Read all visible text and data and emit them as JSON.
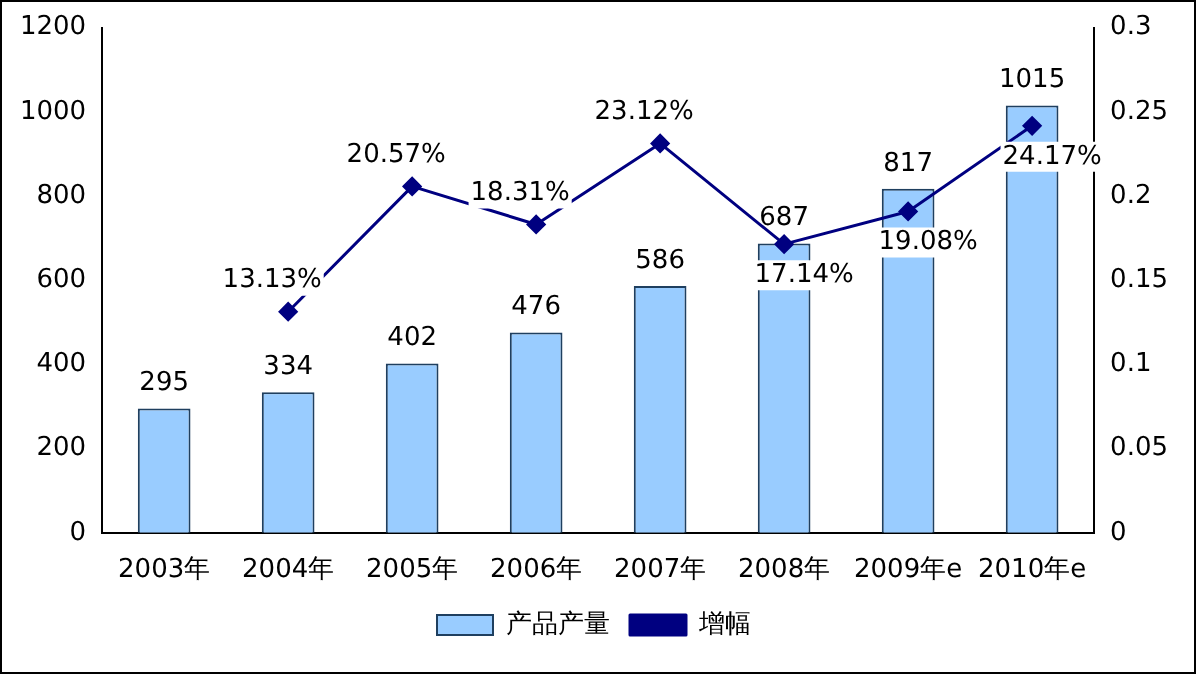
{
  "chart_data": {
    "type": "bar",
    "categories": [
      "2003年",
      "2004年",
      "2005年",
      "2006年",
      "2007年",
      "2008年",
      "2009年e",
      "2010年e"
    ],
    "series": [
      {
        "name": "产品产量",
        "color": "#99ccff",
        "values": [
          295,
          334,
          402,
          476,
          586,
          687,
          817,
          1015
        ]
      },
      {
        "name": "增幅",
        "type": "line",
        "axis": "y2",
        "color": "#000080",
        "marker": "diamond",
        "line_style": "solid",
        "values": [
          null,
          0.1313,
          0.2057,
          0.1831,
          0.2312,
          0.1714,
          0.1908,
          0.2417
        ],
        "value_labels": [
          null,
          "13.13%",
          "20.57%",
          "18.31%",
          "23.12%",
          "17.14%",
          "19.08%",
          "24.17%"
        ]
      }
    ],
    "ylim": [
      0,
      1200
    ],
    "yticks": [
      0,
      200,
      400,
      600,
      800,
      1000,
      1200
    ],
    "y2lim": [
      0,
      0.3
    ],
    "y2ticks": [
      0,
      0.05,
      0.1,
      0.15,
      0.2,
      0.25,
      0.3
    ],
    "data_labels": true,
    "grid": false,
    "legend": "bottom"
  }
}
